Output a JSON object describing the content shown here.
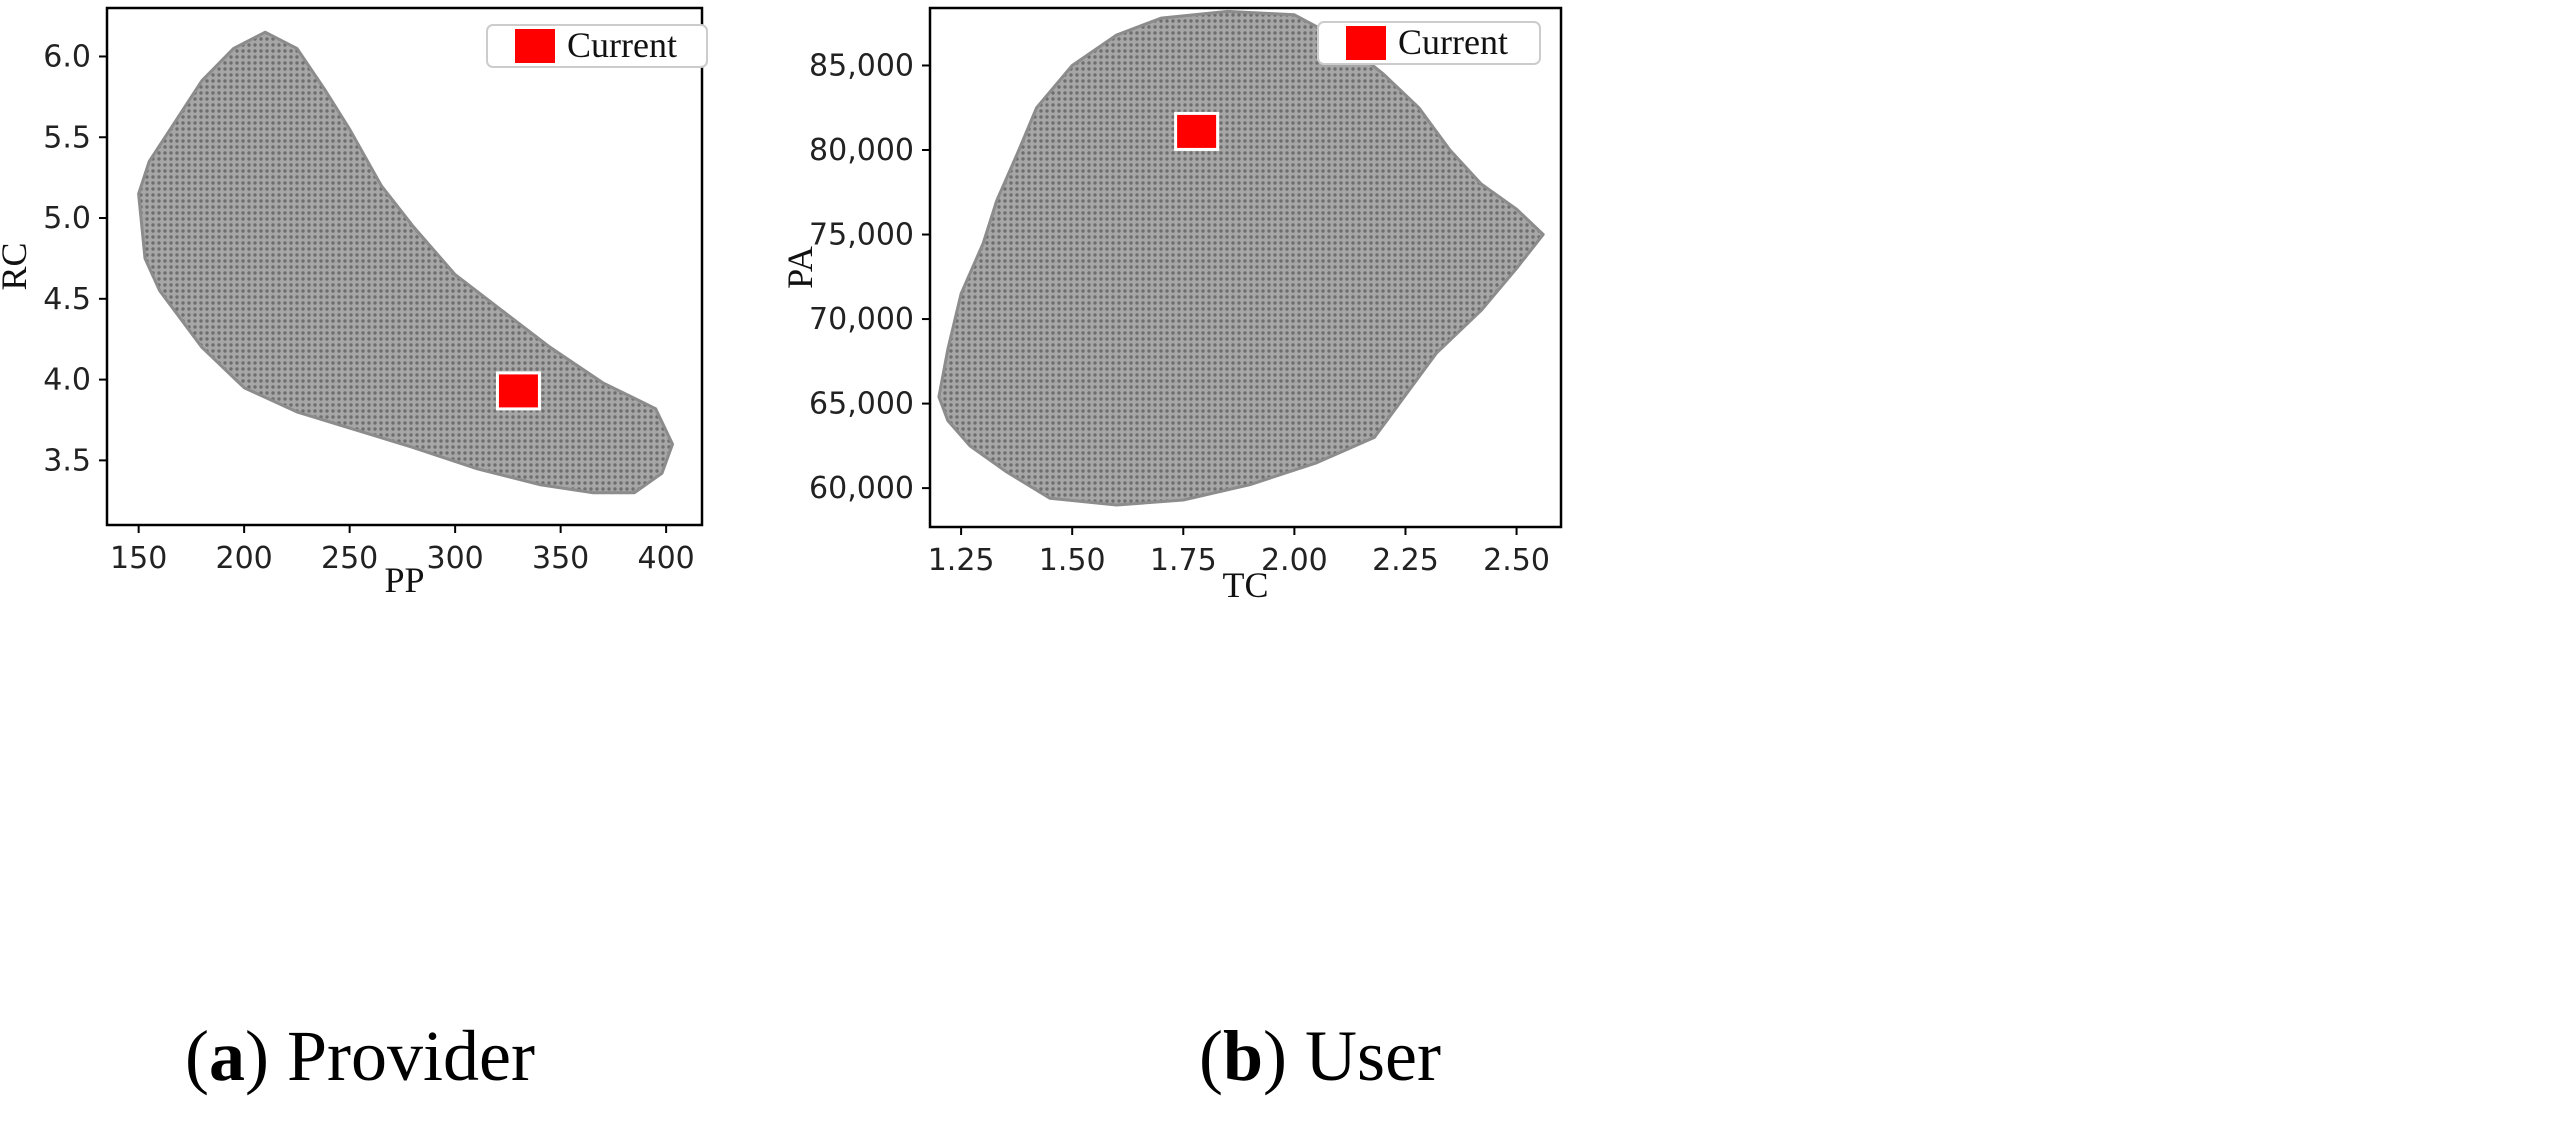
{
  "chart_data": [
    {
      "type": "scatter",
      "caption": {
        "letter": "a",
        "text": "Provider"
      },
      "xlabel": "PP",
      "ylabel": "RC",
      "xlim": [
        135,
        417
      ],
      "ylim": [
        3.1,
        6.3
      ],
      "xticks": [
        150,
        200,
        250,
        300,
        350,
        400
      ],
      "xtick_labels": [
        "150",
        "200",
        "250",
        "300",
        "350",
        "400"
      ],
      "yticks": [
        3.5,
        4.0,
        4.5,
        5.0,
        5.5,
        6.0
      ],
      "ytick_labels": [
        "3.5",
        "4.0",
        "4.5",
        "5.0",
        "5.5",
        "6.0"
      ],
      "legend": {
        "placement": "top-right",
        "label": "Current"
      },
      "grid": false,
      "cloud_color": "#9a9a9a",
      "marker_color": "#ff0000",
      "cloud_outline": [
        [
          150,
          5.15
        ],
        [
          153,
          4.75
        ],
        [
          160,
          4.55
        ],
        [
          180,
          4.2
        ],
        [
          200,
          3.95
        ],
        [
          225,
          3.8
        ],
        [
          250,
          3.7
        ],
        [
          280,
          3.58
        ],
        [
          310,
          3.45
        ],
        [
          340,
          3.35
        ],
        [
          365,
          3.3
        ],
        [
          385,
          3.3
        ],
        [
          398,
          3.42
        ],
        [
          403,
          3.6
        ],
        [
          395,
          3.82
        ],
        [
          370,
          3.98
        ],
        [
          345,
          4.2
        ],
        [
          320,
          4.45
        ],
        [
          300,
          4.65
        ],
        [
          280,
          4.95
        ],
        [
          265,
          5.2
        ],
        [
          250,
          5.55
        ],
        [
          238,
          5.8
        ],
        [
          225,
          6.05
        ],
        [
          210,
          6.15
        ],
        [
          195,
          6.05
        ],
        [
          180,
          5.85
        ],
        [
          165,
          5.55
        ],
        [
          155,
          5.35
        ]
      ],
      "current": {
        "x": 330,
        "y": 3.93
      }
    },
    {
      "type": "scatter",
      "caption": {
        "letter": "b",
        "text": "User"
      },
      "xlabel": "TC",
      "ylabel": "PA",
      "xlim": [
        1.18,
        2.6
      ],
      "ylim": [
        57700,
        88400
      ],
      "xticks": [
        1.25,
        1.5,
        1.75,
        2.0,
        2.25,
        2.5
      ],
      "xtick_labels": [
        "1.25",
        "1.50",
        "1.75",
        "2.00",
        "2.25",
        "2.50"
      ],
      "yticks": [
        60000,
        65000,
        70000,
        75000,
        80000,
        85000
      ],
      "ytick_labels": [
        "60,000",
        "65,000",
        "70,000",
        "75,000",
        "80,000",
        "85,000"
      ],
      "legend": {
        "placement": "top-right",
        "label": "Current"
      },
      "grid": false,
      "cloud_color": "#9a9a9a",
      "marker_color": "#ff0000",
      "cloud_outline": [
        [
          1.2,
          65400
        ],
        [
          1.22,
          68200
        ],
        [
          1.25,
          71500
        ],
        [
          1.3,
          74500
        ],
        [
          1.33,
          77000
        ],
        [
          1.38,
          80000
        ],
        [
          1.42,
          82500
        ],
        [
          1.5,
          85000
        ],
        [
          1.6,
          86800
        ],
        [
          1.7,
          87800
        ],
        [
          1.85,
          88200
        ],
        [
          2.0,
          88000
        ],
        [
          2.1,
          86600
        ],
        [
          2.2,
          84500
        ],
        [
          2.28,
          82500
        ],
        [
          2.35,
          80000
        ],
        [
          2.42,
          78000
        ],
        [
          2.5,
          76500
        ],
        [
          2.56,
          75000
        ],
        [
          2.5,
          73000
        ],
        [
          2.42,
          70500
        ],
        [
          2.32,
          68000
        ],
        [
          2.25,
          65500
        ],
        [
          2.18,
          63000
        ],
        [
          2.05,
          61500
        ],
        [
          1.9,
          60200
        ],
        [
          1.75,
          59300
        ],
        [
          1.6,
          59000
        ],
        [
          1.45,
          59400
        ],
        [
          1.35,
          61000
        ],
        [
          1.27,
          62500
        ],
        [
          1.22,
          64000
        ]
      ],
      "current": {
        "x": 1.78,
        "y": 81100
      }
    }
  ]
}
